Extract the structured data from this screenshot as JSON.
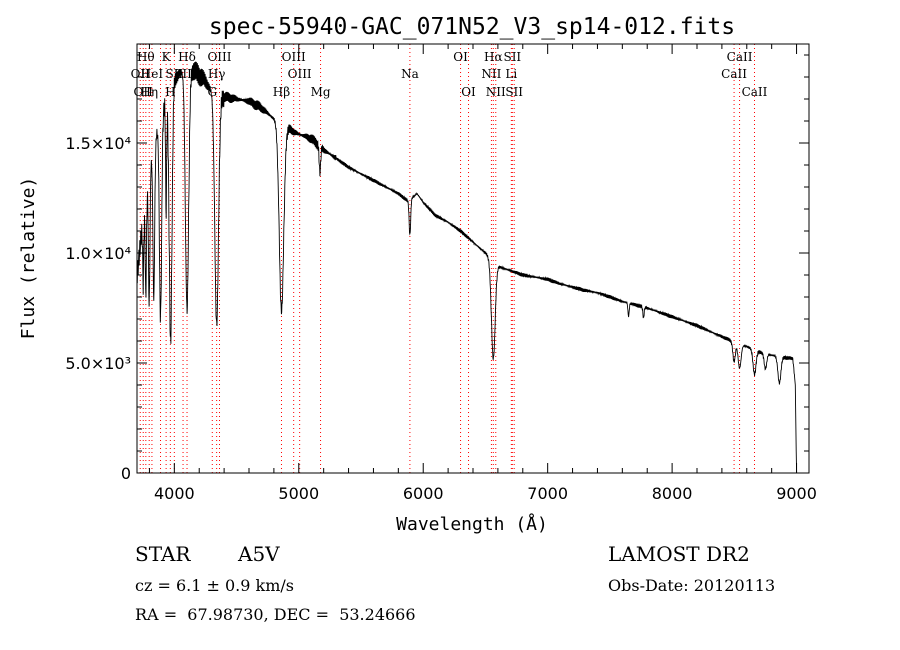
{
  "chart_data": {
    "type": "line",
    "title": "spec-55940-GAC_071N52_V3_sp14-012.fits",
    "xlabel": "Wavelength (Å)",
    "ylabel": "Flux (relative)",
    "xlim": [
      3700,
      9100
    ],
    "ylim": [
      0,
      19500
    ],
    "x_ticks": [
      4000,
      5000,
      6000,
      7000,
      8000,
      9000
    ],
    "y_ticks": [
      {
        "value": 0,
        "label": "0"
      },
      {
        "value": 5000,
        "label": "5.0×10³"
      },
      {
        "value": 10000,
        "label": "1.0×10⁴"
      },
      {
        "value": 15000,
        "label": "1.5×10⁴"
      }
    ],
    "grid": false,
    "legend": "none",
    "continuum": [
      [
        3700,
        9000
      ],
      [
        3740,
        11000
      ],
      [
        3780,
        13000
      ],
      [
        3820,
        14500
      ],
      [
        3860,
        15500
      ],
      [
        3900,
        16300
      ],
      [
        3950,
        17100
      ],
      [
        4000,
        17900
      ],
      [
        4050,
        18200
      ],
      [
        4100,
        18400
      ],
      [
        4150,
        18300
      ],
      [
        4200,
        18100
      ],
      [
        4250,
        17800
      ],
      [
        4300,
        17400
      ],
      [
        4400,
        17100
      ],
      [
        4500,
        17000
      ],
      [
        4600,
        16900
      ],
      [
        4700,
        16600
      ],
      [
        4800,
        16100
      ],
      [
        4900,
        15700
      ],
      [
        5000,
        15400
      ],
      [
        5100,
        15200
      ],
      [
        5200,
        14700
      ],
      [
        5300,
        14300
      ],
      [
        5400,
        13900
      ],
      [
        5500,
        13600
      ],
      [
        5600,
        13300
      ],
      [
        5700,
        13000
      ],
      [
        5800,
        12700
      ],
      [
        5880,
        12350
      ],
      [
        5950,
        12700
      ],
      [
        6000,
        12300
      ],
      [
        6100,
        11700
      ],
      [
        6200,
        11400
      ],
      [
        6300,
        11000
      ],
      [
        6400,
        10500
      ],
      [
        6500,
        10000
      ],
      [
        6560,
        9600
      ],
      [
        6620,
        9350
      ],
      [
        6700,
        9200
      ],
      [
        6800,
        9000
      ],
      [
        6900,
        8900
      ],
      [
        7000,
        8800
      ],
      [
        7100,
        8600
      ],
      [
        7200,
        8450
      ],
      [
        7300,
        8300
      ],
      [
        7400,
        8200
      ],
      [
        7500,
        8000
      ],
      [
        7600,
        7800
      ],
      [
        7700,
        7650
      ],
      [
        7800,
        7500
      ],
      [
        7900,
        7300
      ],
      [
        8000,
        7100
      ],
      [
        8100,
        6900
      ],
      [
        8200,
        6700
      ],
      [
        8300,
        6450
      ],
      [
        8400,
        6200
      ],
      [
        8500,
        5950
      ],
      [
        8600,
        5750
      ],
      [
        8700,
        5500
      ],
      [
        8800,
        5350
      ],
      [
        8900,
        5250
      ],
      [
        8970,
        5200
      ],
      [
        8990,
        4000
      ],
      [
        9000,
        0
      ]
    ],
    "absorption": [
      {
        "center": 3750,
        "width": 4,
        "depth": 3000
      },
      {
        "center": 3771,
        "width": 5,
        "depth": 4500
      },
      {
        "center": 3798,
        "width": 6,
        "depth": 6000
      },
      {
        "center": 3835,
        "width": 7,
        "depth": 7000
      },
      {
        "center": 3889,
        "width": 9,
        "depth": 9000
      },
      {
        "center": 3934,
        "width": 4,
        "depth": 5000
      },
      {
        "center": 3970,
        "width": 11,
        "depth": 11500
      },
      {
        "center": 4102,
        "width": 13,
        "depth": 11000
      },
      {
        "center": 4340,
        "width": 15,
        "depth": 10500
      },
      {
        "center": 4861,
        "width": 18,
        "depth": 8500
      },
      {
        "center": 5170,
        "width": 6,
        "depth": 1200
      },
      {
        "center": 5893,
        "width": 6,
        "depth": 1600
      },
      {
        "center": 6563,
        "width": 15,
        "depth": 4400
      },
      {
        "center": 7650,
        "width": 5,
        "depth": 600
      },
      {
        "center": 7770,
        "width": 5,
        "depth": 500
      },
      {
        "center": 8498,
        "width": 10,
        "depth": 900
      },
      {
        "center": 8542,
        "width": 12,
        "depth": 1100
      },
      {
        "center": 8662,
        "width": 12,
        "depth": 1100
      },
      {
        "center": 8750,
        "width": 10,
        "depth": 700
      },
      {
        "center": 8862,
        "width": 12,
        "depth": 1200
      }
    ],
    "lines": [
      {
        "wl": 3726,
        "label": "OII",
        "row": 1
      },
      {
        "wl": 3750,
        "label": "OII",
        "row": 2
      },
      {
        "wl": 3771,
        "label": "Hθ",
        "row": 0
      },
      {
        "wl": 3798,
        "label": "Hη",
        "row": 2
      },
      {
        "wl": 3820,
        "label": "HeI",
        "row": 1
      },
      {
        "wl": 3889,
        "label": "",
        "row": 1
      },
      {
        "wl": 3934,
        "label": "K",
        "row": 0
      },
      {
        "wl": 3968,
        "label": "H",
        "row": 2
      },
      {
        "wl": 4000,
        "label": "SII",
        "row": 1
      },
      {
        "wl": 4070,
        "label": "SII",
        "row": 1
      },
      {
        "wl": 4102,
        "label": "Hδ",
        "row": 0
      },
      {
        "wl": 4305,
        "label": "G",
        "row": 2
      },
      {
        "wl": 4340,
        "label": "Hγ",
        "row": 1
      },
      {
        "wl": 4363,
        "label": "OIII",
        "row": 0
      },
      {
        "wl": 4861,
        "label": "Hβ",
        "row": 2
      },
      {
        "wl": 4959,
        "label": "OIII",
        "row": 0
      },
      {
        "wl": 5007,
        "label": "OIII",
        "row": 1
      },
      {
        "wl": 5175,
        "label": "Mg",
        "row": 2
      },
      {
        "wl": 5893,
        "label": "Na",
        "row": 1
      },
      {
        "wl": 6300,
        "label": "OI",
        "row": 0
      },
      {
        "wl": 6364,
        "label": "OI",
        "row": 2
      },
      {
        "wl": 6548,
        "label": "NII",
        "row": 1
      },
      {
        "wl": 6563,
        "label": "Hα",
        "row": 0
      },
      {
        "wl": 6583,
        "label": "NII",
        "row": 2
      },
      {
        "wl": 6708,
        "label": "Li",
        "row": 1
      },
      {
        "wl": 6716,
        "label": "SII",
        "row": 0
      },
      {
        "wl": 6731,
        "label": "SII",
        "row": 2
      },
      {
        "wl": 8498,
        "label": "CaII",
        "row": 1
      },
      {
        "wl": 8542,
        "label": "CaII",
        "row": 0
      },
      {
        "wl": 8662,
        "label": "CaII",
        "row": 2
      }
    ],
    "line_color": "#000000",
    "marker_color": "#ff0000"
  },
  "info": {
    "object_class": "STAR",
    "subclass": "A5V",
    "survey": "LAMOST DR2",
    "cz": "cz = 6.1 ± 0.9 km/s",
    "obs_date": "Obs-Date: 20120113",
    "coords": "RA =  67.98730, DEC =  53.24666"
  }
}
